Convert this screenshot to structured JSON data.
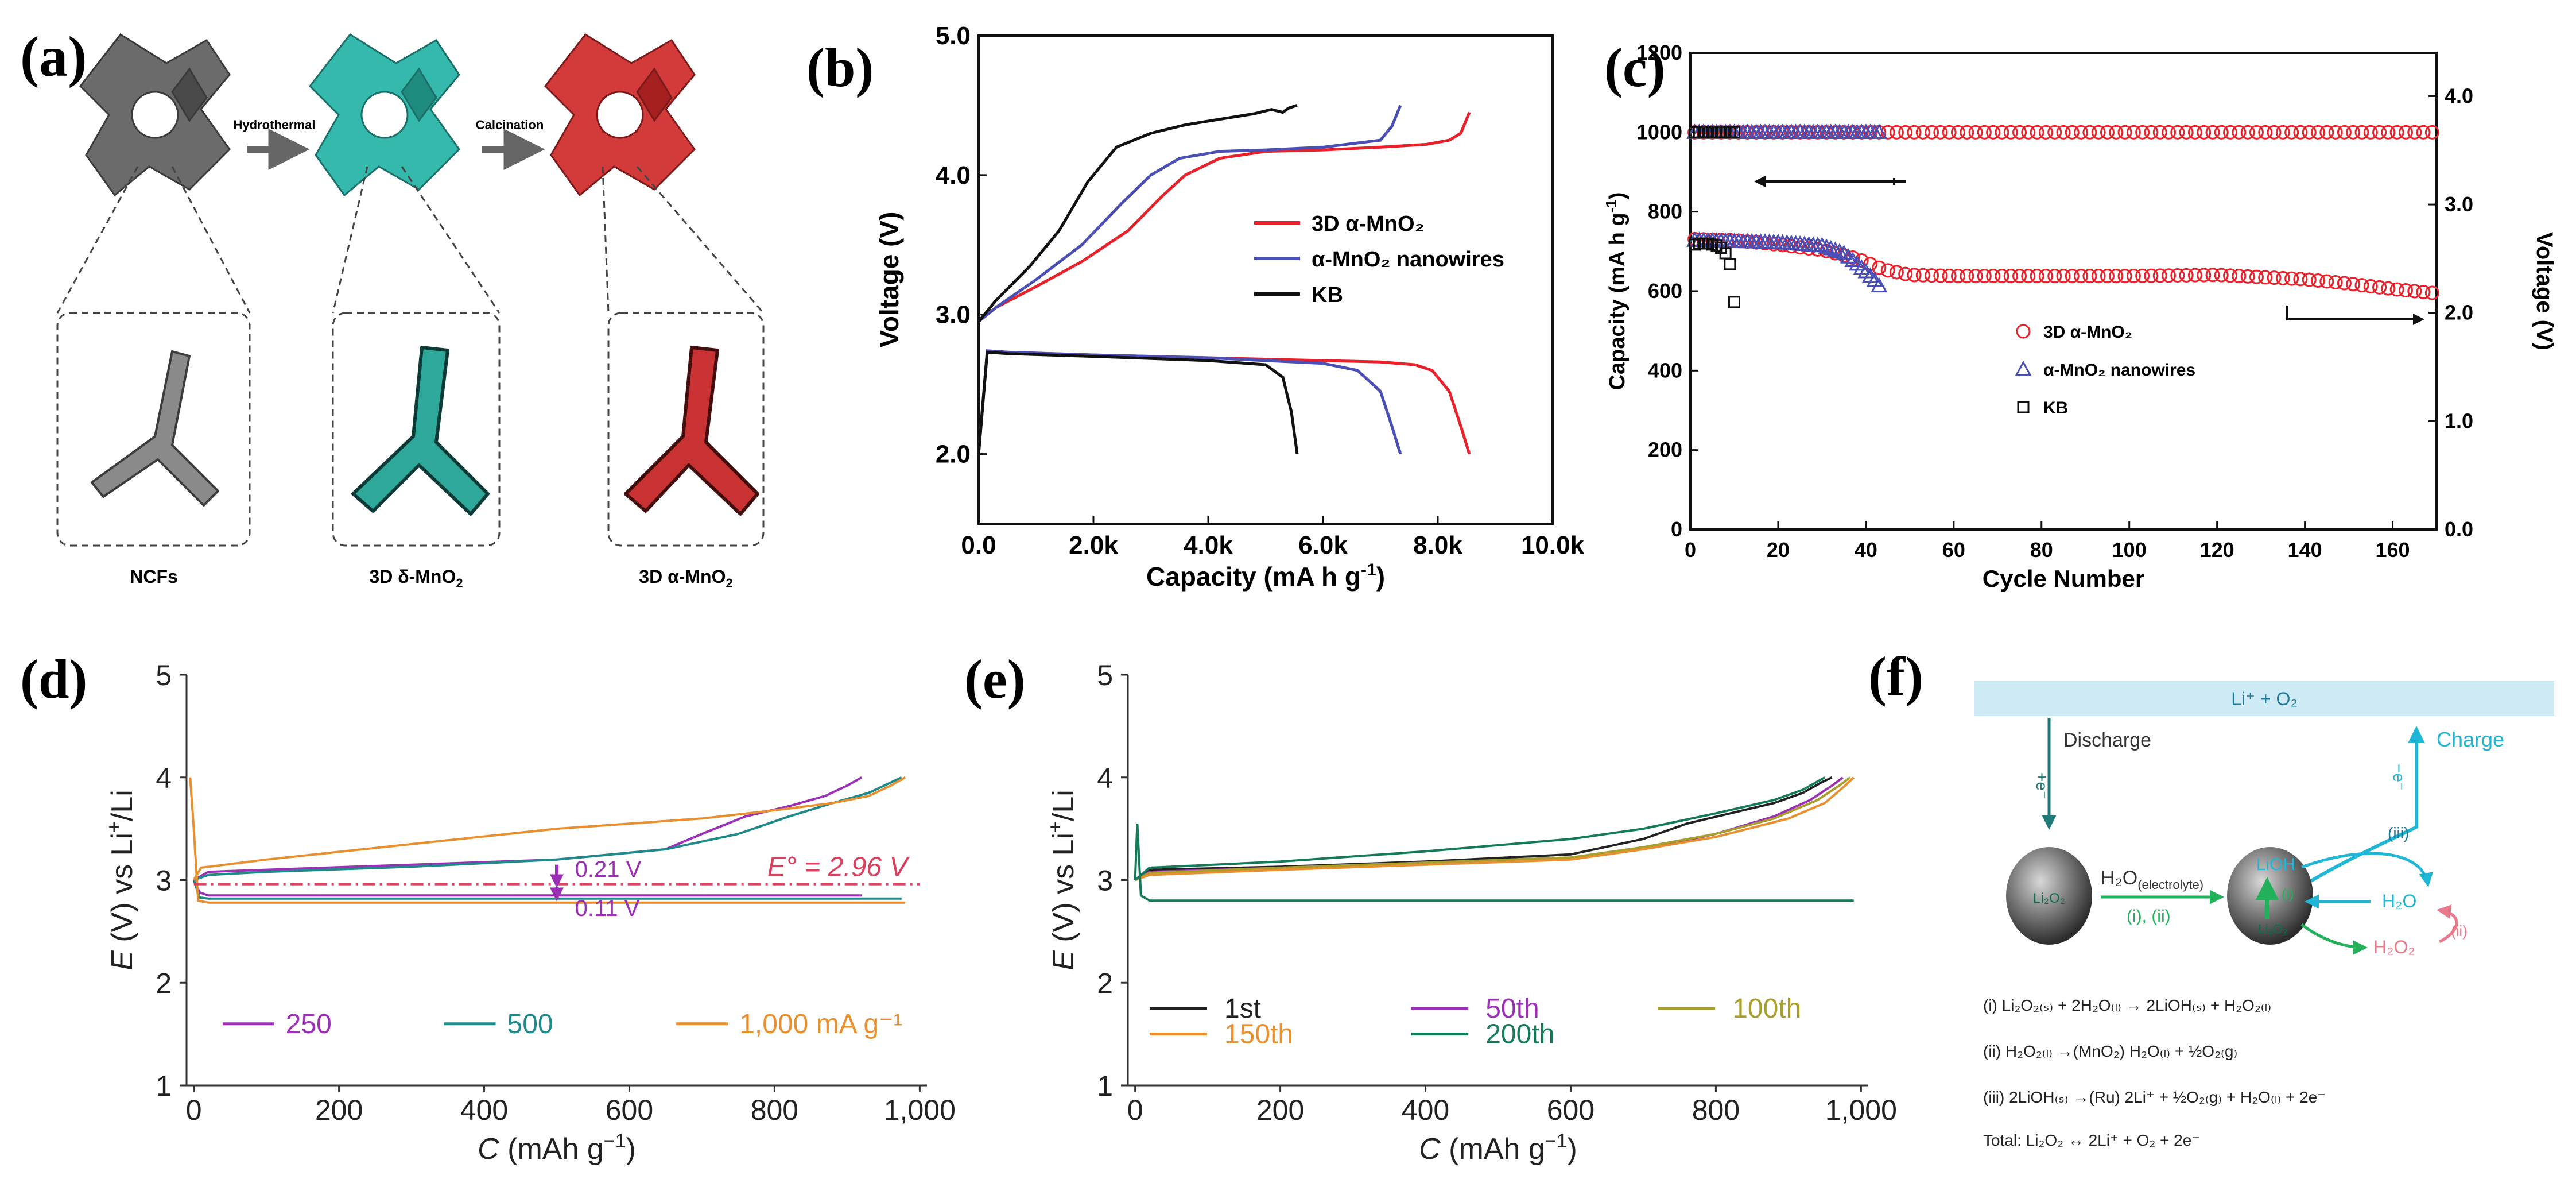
{
  "colors": {
    "red": "#e8212a",
    "blue": "#4a4fb5",
    "black": "#111111",
    "purple": "#9b2fb5",
    "teal": "#1f8a8a",
    "orange": "#e8902f",
    "olive": "#a79e2b",
    "green_dark": "#157a5a",
    "dark": "#222222",
    "cyan": "#1fb7d5",
    "pink": "#e87b8b",
    "green_arrow": "#22b05a",
    "dashed_red": "#d8405d",
    "banner": "#cdeaf5",
    "ncf_gray": "#6b6b6b",
    "delta_teal": "#35b9ac",
    "alpha_red": "#d33b3b"
  },
  "panel_a": {
    "label": "(a)",
    "step1": "Hydrothermal",
    "step2": "Calcination",
    "captions": [
      "NCFs",
      "3D δ-MnO",
      "3D α-MnO"
    ],
    "subscript": "2"
  },
  "chart_data": [
    {
      "id": "b",
      "type": "line",
      "label": "(b)",
      "xlabel": "Capacity (mA h g",
      "xlabel_sup": "-1",
      "xlabel_end": ")",
      "ylabel": "Voltage (V)",
      "xlim": [
        0,
        10000
      ],
      "ylim": [
        1.5,
        5.0
      ],
      "xticks": [
        0,
        2000,
        4000,
        6000,
        8000,
        10000
      ],
      "xtick_labels": [
        "0.0",
        "2.0k",
        "4.0k",
        "6.0k",
        "8.0k",
        "10.0k"
      ],
      "yticks": [
        2.0,
        3.0,
        4.0,
        5.0
      ],
      "ytick_labels": [
        "2.0",
        "3.0",
        "4.0",
        "5.0"
      ],
      "legend": [
        "3D α-MnO₂",
        "α-MnO₂ nanowires",
        "KB"
      ],
      "series": [
        {
          "name": "3D α-MnO₂ discharge",
          "color": "red",
          "x": [
            0,
            150,
            500,
            2000,
            4000,
            6000,
            7000,
            7600,
            7900,
            8200,
            8400,
            8550
          ],
          "y": [
            2.0,
            2.74,
            2.73,
            2.71,
            2.69,
            2.67,
            2.66,
            2.64,
            2.6,
            2.45,
            2.2,
            2.0
          ]
        },
        {
          "name": "3D α-MnO₂ charge",
          "color": "red",
          "x": [
            0,
            300,
            1000,
            1800,
            2600,
            3200,
            3600,
            4200,
            5000,
            6000,
            7000,
            7800,
            8200,
            8400,
            8550
          ],
          "y": [
            2.95,
            3.05,
            3.2,
            3.38,
            3.6,
            3.85,
            4.0,
            4.12,
            4.17,
            4.18,
            4.2,
            4.22,
            4.25,
            4.3,
            4.45
          ]
        },
        {
          "name": "α-MnO₂ nanowires discharge",
          "color": "blue",
          "x": [
            0,
            150,
            500,
            2000,
            4000,
            6000,
            6600,
            7000,
            7200,
            7350
          ],
          "y": [
            2.0,
            2.74,
            2.73,
            2.71,
            2.69,
            2.65,
            2.6,
            2.45,
            2.2,
            2.0
          ]
        },
        {
          "name": "α-MnO₂ nanowires charge",
          "color": "blue",
          "x": [
            0,
            300,
            1000,
            1800,
            2500,
            3000,
            3500,
            4200,
            5000,
            6000,
            7000,
            7200,
            7350
          ],
          "y": [
            2.95,
            3.05,
            3.25,
            3.5,
            3.8,
            4.0,
            4.12,
            4.17,
            4.18,
            4.2,
            4.25,
            4.35,
            4.5
          ]
        },
        {
          "name": "KB discharge",
          "color": "black",
          "x": [
            0,
            150,
            500,
            2000,
            4000,
            5000,
            5300,
            5450,
            5550
          ],
          "y": [
            2.0,
            2.73,
            2.72,
            2.7,
            2.67,
            2.64,
            2.55,
            2.3,
            2.0
          ]
        },
        {
          "name": "KB charge",
          "color": "black",
          "x": [
            0,
            300,
            900,
            1400,
            1900,
            2400,
            3000,
            3600,
            4200,
            4800,
            5100,
            5300,
            5400,
            5550
          ],
          "y": [
            2.95,
            3.1,
            3.35,
            3.6,
            3.95,
            4.2,
            4.3,
            4.36,
            4.4,
            4.44,
            4.47,
            4.45,
            4.48,
            4.5
          ]
        }
      ]
    },
    {
      "id": "c",
      "type": "scatter",
      "label": "(c)",
      "xlabel": "Cycle Number",
      "ylabel_left": "Capacity (mA h g",
      "ylabel_left_sup": "-1",
      "ylabel_left_end": ")",
      "ylabel_right": "Voltage (V)",
      "xlim": [
        0,
        170
      ],
      "ylim_left": [
        0,
        1200
      ],
      "ylim_right": [
        0.0,
        4.4
      ],
      "xticks": [
        0,
        20,
        40,
        60,
        80,
        100,
        120,
        140,
        160
      ],
      "yticks_left": [
        0,
        200,
        400,
        600,
        800,
        1000,
        1200
      ],
      "yticks_right": [
        0.0,
        1.0,
        2.0,
        3.0,
        4.0
      ],
      "ytick_labels_right": [
        "0.0",
        "1.0",
        "2.0",
        "3.0",
        "4.0"
      ],
      "legend": [
        "3D α-MnO₂",
        "α-MnO₂ nanowires",
        "KB"
      ],
      "capacity_value": 1000,
      "series": [
        {
          "name": "3D α-MnO₂ capacity",
          "marker": "circle",
          "color": "red",
          "cycles_from": 1,
          "cycles_to": 170,
          "value": 1000
        },
        {
          "name": "α-MnO₂ nanowires capacity",
          "marker": "triangle",
          "color": "blue",
          "cycles_from": 1,
          "cycles_to": 43,
          "value": 1000
        },
        {
          "name": "KB capacity",
          "marker": "square",
          "color": "black",
          "cycles_from": 1,
          "cycles_to": 10,
          "value": 1000
        },
        {
          "name": "3D α-MnO₂ voltage",
          "marker": "circle",
          "color": "red",
          "x": [
            1,
            10,
            20,
            30,
            38,
            44,
            50,
            60,
            80,
            100,
            120,
            130,
            140,
            150,
            160,
            170
          ],
          "y": [
            2.68,
            2.67,
            2.63,
            2.58,
            2.5,
            2.4,
            2.35,
            2.34,
            2.34,
            2.34,
            2.35,
            2.33,
            2.31,
            2.27,
            2.22,
            2.18
          ]
        },
        {
          "name": "α-MnO₂ nanowires voltage",
          "marker": "triangle",
          "color": "blue",
          "x": [
            1,
            10,
            20,
            30,
            35,
            38,
            40,
            42,
            43
          ],
          "y": [
            2.67,
            2.66,
            2.65,
            2.62,
            2.55,
            2.45,
            2.38,
            2.3,
            2.25
          ]
        },
        {
          "name": "KB voltage",
          "marker": "square",
          "color": "black",
          "x": [
            1,
            2,
            3,
            4,
            5,
            6,
            7,
            8,
            9,
            10
          ],
          "y": [
            2.63,
            2.64,
            2.64,
            2.64,
            2.63,
            2.62,
            2.6,
            2.55,
            2.45,
            2.1
          ]
        }
      ]
    },
    {
      "id": "d",
      "type": "line",
      "label": "(d)",
      "xlabel_var": "C",
      "xlabel": " (mAh g",
      "xlabel_sup": "−1",
      "xlabel_end": ")",
      "ylabel_var": "E",
      "ylabel": " (V) vs Li",
      "ylabel_sup": "+",
      "ylabel_end": "/Li",
      "xlim": [
        -10,
        1010
      ],
      "ylim": [
        1,
        5
      ],
      "xticks": [
        0,
        200,
        400,
        600,
        800,
        1000
      ],
      "xtick_labels": [
        "0",
        "200",
        "400",
        "600",
        "800",
        "1,000"
      ],
      "yticks": [
        1,
        2,
        3,
        4,
        5
      ],
      "ytick_labels": [
        "1",
        "2",
        "3",
        "4",
        "5"
      ],
      "equilibrium": 2.96,
      "annotations": {
        "upper": "0.21 V",
        "lower": "0.11 V",
        "eq": "E° = 2.96 V"
      },
      "legend": [
        "250",
        "500",
        "1,000 mA g⁻¹"
      ],
      "series": [
        {
          "name": "250 charge",
          "color": "purple",
          "x": [
            0,
            20,
            100,
            300,
            500,
            650,
            700,
            760,
            820,
            870,
            900,
            920
          ],
          "y": [
            3.0,
            3.08,
            3.1,
            3.15,
            3.2,
            3.3,
            3.45,
            3.62,
            3.72,
            3.82,
            3.92,
            4.0
          ]
        },
        {
          "name": "250 discharge",
          "color": "purple",
          "x": [
            0,
            8,
            20,
            100,
            500,
            900,
            920
          ],
          "y": [
            3.0,
            2.88,
            2.85,
            2.85,
            2.85,
            2.85,
            2.85
          ]
        },
        {
          "name": "500 charge",
          "color": "teal",
          "x": [
            0,
            20,
            100,
            300,
            500,
            650,
            750,
            820,
            880,
            930,
            960,
            975
          ],
          "y": [
            3.0,
            3.05,
            3.08,
            3.13,
            3.2,
            3.3,
            3.45,
            3.62,
            3.75,
            3.85,
            3.95,
            4.0
          ]
        },
        {
          "name": "500 discharge",
          "color": "teal",
          "x": [
            0,
            8,
            20,
            100,
            500,
            960,
            975
          ],
          "y": [
            3.0,
            2.83,
            2.82,
            2.82,
            2.82,
            2.82,
            2.82
          ]
        },
        {
          "name": "1,000 charge",
          "color": "orange",
          "x": [
            0,
            10,
            100,
            300,
            500,
            700,
            800,
            880,
            930,
            960,
            980
          ],
          "y": [
            3.0,
            3.12,
            3.2,
            3.35,
            3.5,
            3.6,
            3.68,
            3.75,
            3.82,
            3.92,
            4.0
          ]
        },
        {
          "name": "1,000 discharge",
          "color": "orange",
          "x": [
            -5,
            0,
            6,
            20,
            100,
            500,
            970,
            980
          ],
          "y": [
            4.0,
            3.5,
            2.8,
            2.78,
            2.78,
            2.78,
            2.78,
            2.78
          ]
        }
      ]
    },
    {
      "id": "e",
      "type": "line",
      "label": "(e)",
      "xlabel_var": "C",
      "xlabel": " (mAh g",
      "xlabel_sup": "−1",
      "xlabel_end": ")",
      "ylabel_var": "E",
      "ylabel": " (V) vs Li",
      "ylabel_sup": "+",
      "ylabel_end": "/Li",
      "xlim": [
        -10,
        1010
      ],
      "ylim": [
        1,
        5
      ],
      "xticks": [
        0,
        200,
        400,
        600,
        800,
        1000
      ],
      "xtick_labels": [
        "0",
        "200",
        "400",
        "600",
        "800",
        "1,000"
      ],
      "yticks": [
        1,
        2,
        3,
        4,
        5
      ],
      "ytick_labels": [
        "1",
        "2",
        "3",
        "4",
        "5"
      ],
      "legend": [
        "1st",
        "50th",
        "100th",
        "150th",
        "200th"
      ],
      "series": [
        {
          "name": "1st charge",
          "color": "dark",
          "x": [
            0,
            20,
            200,
            400,
            600,
            700,
            760,
            820,
            880,
            920,
            945,
            960
          ],
          "y": [
            3.0,
            3.1,
            3.13,
            3.18,
            3.25,
            3.4,
            3.55,
            3.65,
            3.75,
            3.85,
            3.95,
            4.0
          ]
        },
        {
          "name": "50th charge",
          "color": "purple",
          "x": [
            0,
            20,
            200,
            400,
            600,
            700,
            800,
            880,
            930,
            960,
            975
          ],
          "y": [
            3.0,
            3.08,
            3.12,
            3.17,
            3.22,
            3.3,
            3.45,
            3.62,
            3.78,
            3.92,
            4.0
          ]
        },
        {
          "name": "100th charge",
          "color": "olive",
          "x": [
            0,
            20,
            200,
            400,
            600,
            700,
            800,
            880,
            940,
            970,
            985
          ],
          "y": [
            3.0,
            3.07,
            3.12,
            3.17,
            3.22,
            3.32,
            3.45,
            3.6,
            3.78,
            3.92,
            4.0
          ]
        },
        {
          "name": "150th charge",
          "color": "orange",
          "x": [
            0,
            20,
            200,
            400,
            600,
            700,
            800,
            900,
            950,
            975,
            990
          ],
          "y": [
            3.0,
            3.05,
            3.1,
            3.15,
            3.2,
            3.3,
            3.42,
            3.6,
            3.75,
            3.9,
            4.0
          ]
        },
        {
          "name": "200th charge",
          "color": "green_dark",
          "x": [
            0,
            20,
            200,
            400,
            600,
            700,
            800,
            880,
            920,
            950
          ],
          "y": [
            3.0,
            3.12,
            3.18,
            3.28,
            3.4,
            3.5,
            3.65,
            3.78,
            3.88,
            4.0
          ]
        },
        {
          "name": "discharge",
          "color": "green_dark",
          "x": [
            0,
            3,
            8,
            20,
            100,
            500,
            990
          ],
          "y": [
            3.0,
            3.55,
            2.85,
            2.8,
            2.8,
            2.8,
            2.8
          ]
        }
      ]
    }
  ],
  "panel_f": {
    "label": "(f)",
    "banner": "Li⁺ + O₂",
    "discharge": "Discharge",
    "charge": "Charge",
    "electron_in": "+e⁻",
    "electron_out": "−e⁻",
    "h2o_main": "H₂O",
    "h2o_sub": "(electrolyte)",
    "steps_i_ii": "(i), (ii)",
    "step_i": "(i)",
    "step_ii": "(ii)",
    "step_iii": "(iii)",
    "lioh": "LiOH",
    "h2o": "H₂O",
    "h2o2": "H₂O₂",
    "li2o2": "Li₂O₂",
    "eq_i": "(i)   Li₂O₂₍ₛ₎ + 2H₂O₍ₗ₎ → 2LiOH₍ₛ₎ + H₂O₂₍ₗ₎",
    "eq_ii": "(ii)  H₂O₂₍ₗ₎ →(MnO₂) H₂O₍ₗ₎ + ½O₂₍ɡ₎",
    "eq_iii": "(iii) 2LiOH₍ₛ₎ →(Ru) 2Li⁺ + ½O₂₍ɡ₎ + H₂O₍ₗ₎ + 2e⁻",
    "eq_total": "Total:  Li₂O₂ ↔ 2Li⁺ + O₂ + 2e⁻"
  }
}
